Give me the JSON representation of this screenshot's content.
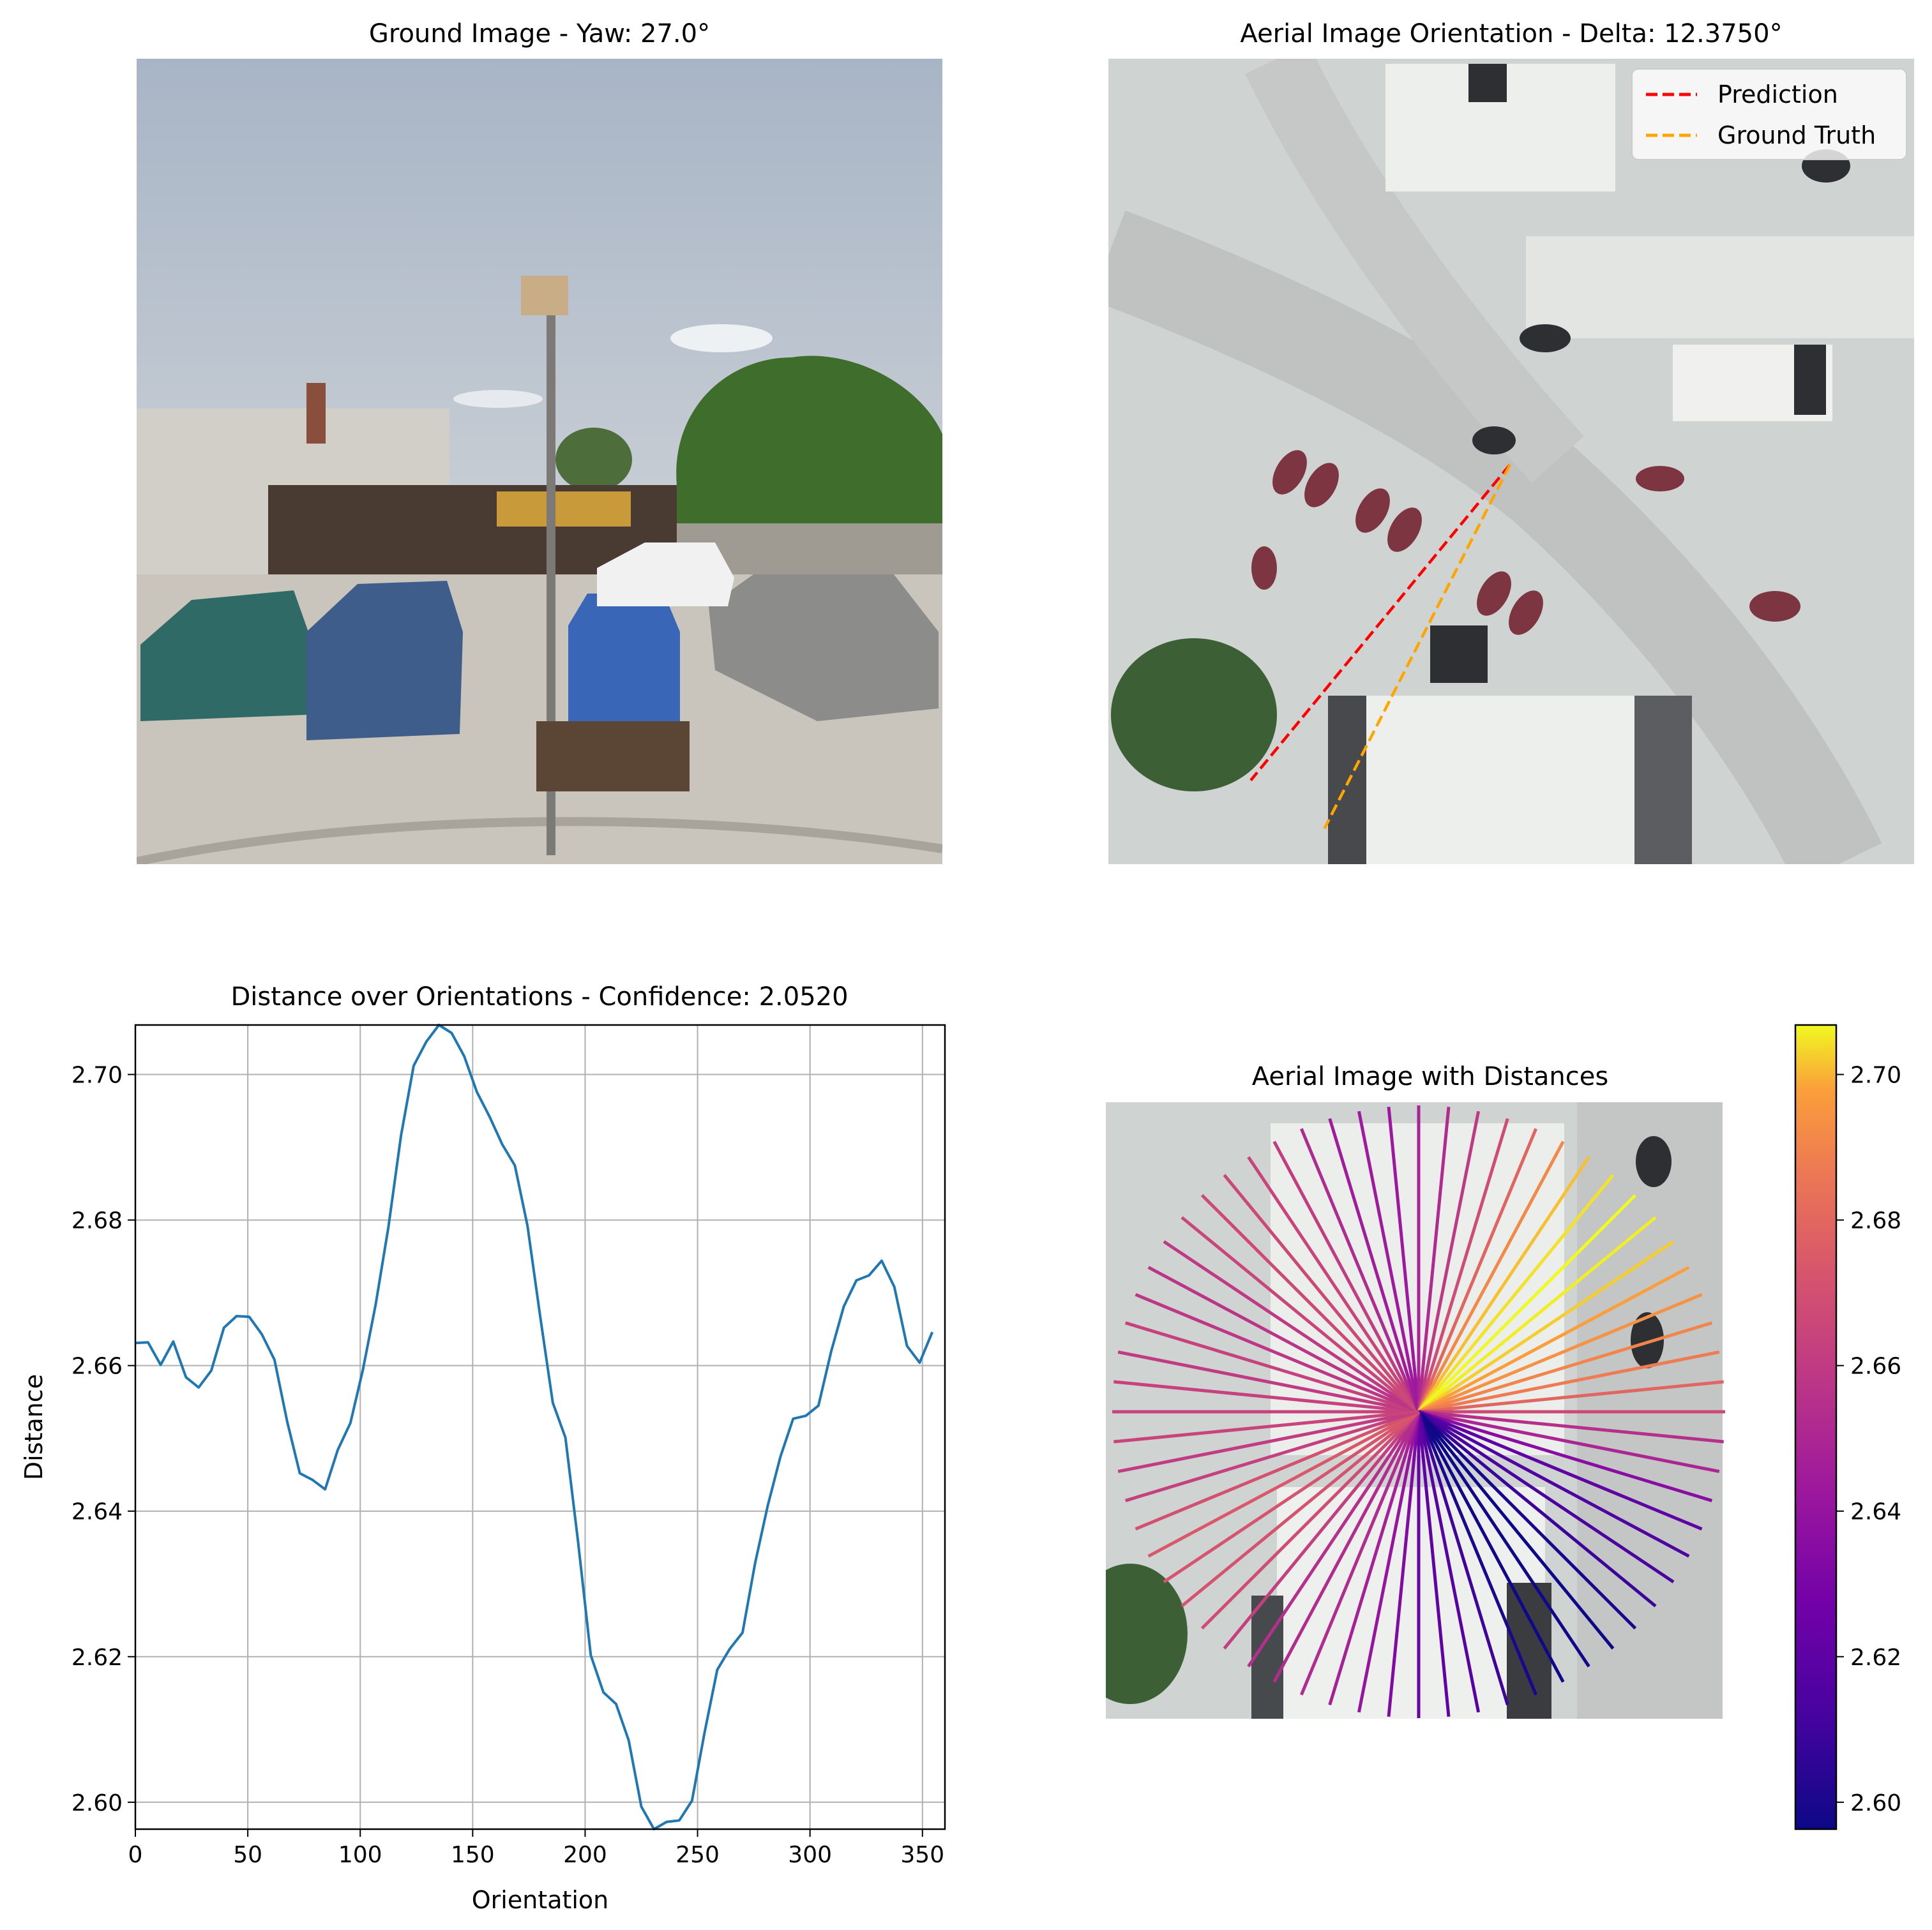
{
  "panels": {
    "ground": {
      "title": "Ground Image - Yaw: 27.0°",
      "scene": {
        "sky_top": "#a8b5c6",
        "sky_bottom": "#c7cdd4",
        "pavement": "#c9c5bc",
        "building_wall": "#d2cfc8",
        "storefront": "#4a3b32",
        "sign": "#c89a3a",
        "tree": "#3f6d2c",
        "cars": [
          {
            "color": "#2f6a67"
          },
          {
            "color": "#3e5d8a"
          },
          {
            "color": "#3a66b8"
          },
          {
            "color": "#8c8c8a"
          },
          {
            "color": "#f1f1f1"
          }
        ]
      }
    },
    "aerial": {
      "title": "Aerial Image Orientation - Delta: 12.3750°",
      "legend": [
        {
          "label": "Prediction",
          "color": "#ff0000"
        },
        {
          "label": "Ground Truth",
          "color": "#ffa500"
        }
      ],
      "prediction_angle_deg": 39.375,
      "ground_truth_angle_deg": 27.0,
      "scene": {
        "ground": "#cfd3d1",
        "road": "#bfc2c0",
        "roof_light": "#ecefec",
        "roof_dark": "#5b5d60",
        "tree": "#3d5f36",
        "car_red": "#7c3541",
        "car_dark": "#2e2f33"
      }
    },
    "distance_chart": {
      "title": "Distance over Orientations - Confidence: 2.0520",
      "colorbar_ticks": [
        "2.60",
        "2.62",
        "2.64",
        "2.66",
        "2.68",
        "2.70"
      ]
    },
    "radial": {
      "title": "Aerial Image with Distances"
    }
  },
  "chart_data": {
    "type": "line",
    "title": "Distance over Orientations - Confidence: 2.0520",
    "xlabel": "Orientation",
    "ylabel": "Distance",
    "xlim": [
      0,
      360
    ],
    "ylim": [
      2.5963,
      2.7068
    ],
    "grid": true,
    "line_color": "#1f77b4",
    "x_ticks": [
      "0",
      "50",
      "100",
      "150",
      "200",
      "250",
      "300",
      "350"
    ],
    "y_ticks": [
      "2.60",
      "2.62",
      "2.64",
      "2.66",
      "2.68",
      "2.70"
    ],
    "x": [
      0,
      5.625,
      11.25,
      16.875,
      22.5,
      28.125,
      33.75,
      39.375,
      45,
      50.625,
      56.25,
      61.875,
      67.5,
      73.125,
      78.75,
      84.375,
      90,
      95.625,
      101.25,
      106.875,
      112.5,
      118.125,
      123.75,
      129.375,
      135,
      140.625,
      146.25,
      151.875,
      157.5,
      163.125,
      168.75,
      174.375,
      180,
      185.625,
      191.25,
      196.875,
      202.5,
      208.125,
      213.75,
      219.375,
      225,
      230.625,
      236.25,
      241.875,
      247.5,
      253.125,
      258.75,
      264.375,
      270,
      275.625,
      281.25,
      286.875,
      292.5,
      298.125,
      303.75,
      309.375,
      315,
      320.625,
      326.25,
      331.875,
      337.5,
      343.125,
      348.75,
      354.375
    ],
    "y": [
      2.6631,
      2.6632,
      2.6601,
      2.6633,
      2.6584,
      2.657,
      2.6593,
      2.6652,
      2.6668,
      2.6667,
      2.6643,
      2.6608,
      2.6523,
      2.6452,
      2.6443,
      2.643,
      2.6484,
      2.6521,
      2.6595,
      2.6684,
      2.679,
      2.6916,
      2.7012,
      2.7045,
      2.7068,
      2.7057,
      2.7025,
      2.6976,
      2.6942,
      2.6904,
      2.6875,
      2.6792,
      2.6668,
      2.6549,
      2.6501,
      2.6358,
      2.6202,
      2.6151,
      2.6135,
      2.6085,
      2.5994,
      2.5963,
      2.5973,
      2.5975,
      2.6002,
      2.6096,
      2.6182,
      2.6211,
      2.6233,
      2.6329,
      2.6408,
      2.6475,
      2.6527,
      2.6531,
      2.6545,
      2.6619,
      2.6681,
      2.6717,
      2.6724,
      2.6744,
      2.6708,
      2.6627,
      2.6604,
      2.6646
    ],
    "colorbar": {
      "colormap": "plasma",
      "range": [
        2.5963,
        2.7068
      ]
    }
  }
}
